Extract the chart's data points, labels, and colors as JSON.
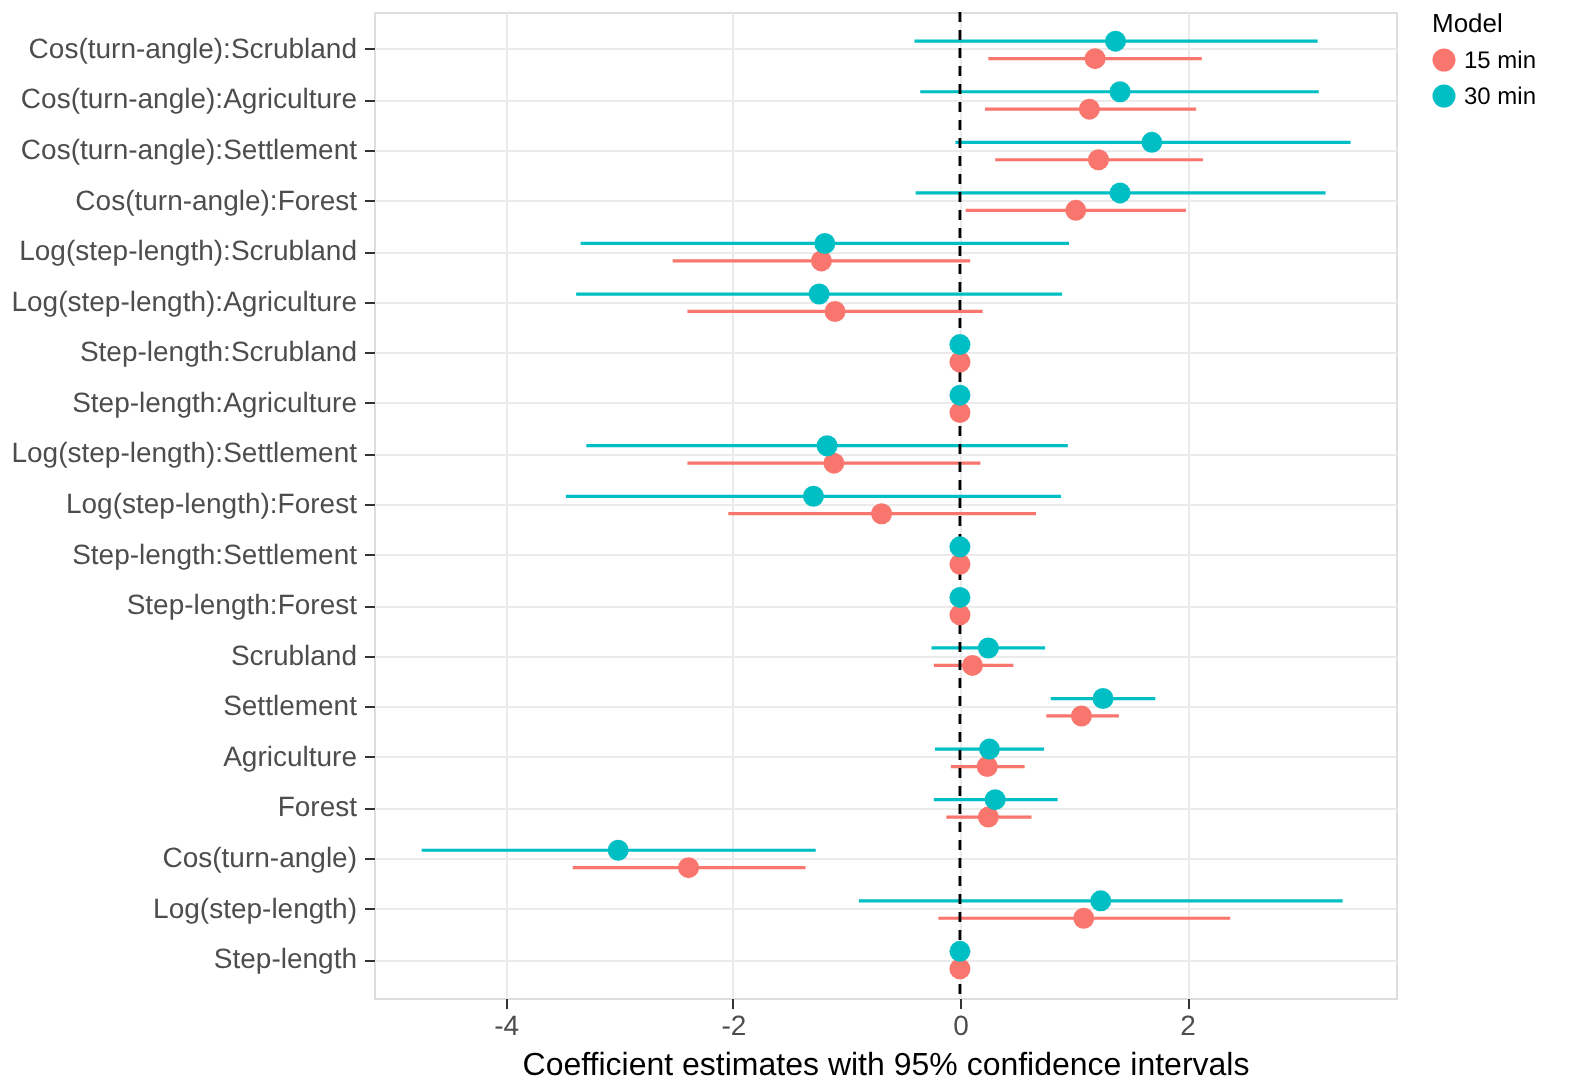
{
  "chart_data": {
    "type": "scatter",
    "orientation": "horizontal",
    "xlabel": "Coefficient estimates with 95% confidence intervals",
    "legend_title": "Model",
    "legend": "right",
    "grid": true,
    "marker": "circle",
    "categories": [
      "Cos(turn-angle):Scrubland",
      "Cos(turn-angle):Agriculture",
      "Cos(turn-angle):Settlement",
      "Cos(turn-angle):Forest",
      "Log(step-length):Scrubland",
      "Log(step-length):Agriculture",
      "Step-length:Scrubland",
      "Step-length:Agriculture",
      "Log(step-length):Settlement",
      "Log(step-length):Forest",
      "Step-length:Settlement",
      "Step-length:Forest",
      "Scrubland",
      "Settlement",
      "Agriculture",
      "Forest",
      "Cos(turn-angle)",
      "Log(step-length)",
      "Step-length"
    ],
    "xlim": [
      -5.16,
      3.84
    ],
    "xticks": [
      -4,
      -2,
      0,
      2
    ],
    "ref_lines": [
      {
        "axis": "x",
        "value": 0,
        "line_style": "dashed",
        "color": "#000000"
      }
    ],
    "series": [
      {
        "name": "15 min",
        "color": "#f8766d",
        "values": [
          1.19,
          1.14,
          1.22,
          1.02,
          -1.22,
          -1.1,
          0,
          0,
          -1.11,
          -0.69,
          0,
          0,
          0.11,
          1.07,
          0.24,
          0.25,
          -2.39,
          1.09,
          0
        ],
        "errors": [
          [
            0.25,
            2.13
          ],
          [
            0.22,
            2.08
          ],
          [
            0.31,
            2.14
          ],
          [
            0.05,
            1.99
          ],
          [
            -2.53,
            0.09
          ],
          [
            -2.4,
            0.2
          ],
          null,
          null,
          [
            -2.4,
            0.18
          ],
          [
            -2.04,
            0.67
          ],
          null,
          null,
          [
            -0.23,
            0.47
          ],
          [
            0.76,
            1.4
          ],
          [
            -0.08,
            0.57
          ],
          [
            -0.12,
            0.63
          ],
          [
            -3.41,
            -1.36
          ],
          [
            -0.19,
            2.38
          ],
          null
        ]
      },
      {
        "name": "30 min",
        "color": "#00bfc4",
        "values": [
          1.37,
          1.41,
          1.69,
          1.41,
          -1.19,
          -1.24,
          0,
          0,
          -1.17,
          -1.29,
          0,
          0,
          0.25,
          1.26,
          0.26,
          0.31,
          -3.01,
          1.24,
          0
        ],
        "errors": [
          [
            -0.4,
            3.15
          ],
          [
            -0.35,
            3.16
          ],
          [
            -0.04,
            3.44
          ],
          [
            -0.39,
            3.22
          ],
          [
            -3.34,
            0.96
          ],
          [
            -3.38,
            0.9
          ],
          null,
          null,
          [
            -3.29,
            0.95
          ],
          [
            -3.47,
            0.89
          ],
          null,
          null,
          [
            -0.25,
            0.75
          ],
          [
            0.8,
            1.72
          ],
          [
            -0.22,
            0.74
          ],
          [
            -0.23,
            0.86
          ],
          [
            -4.74,
            -1.27
          ],
          [
            -0.89,
            3.37
          ],
          null
        ]
      }
    ]
  }
}
